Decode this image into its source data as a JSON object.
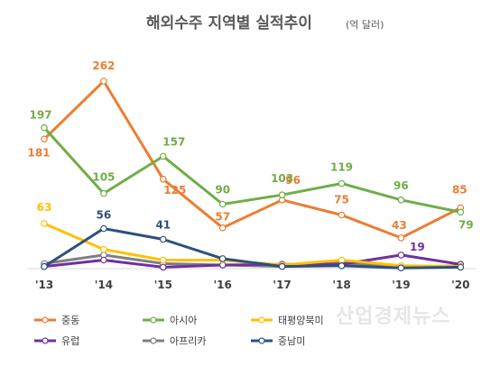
{
  "title": "해외수주 지역별 실적추이",
  "unit": "(억 달러)",
  "watermark": "산업경제뉴스",
  "chart_data": {
    "type": "line",
    "title": "해외수주 지역별 실적추이",
    "unit": "(억 달러)",
    "categories": [
      "'13",
      "'14",
      "'15",
      "'16",
      "'17",
      "'18",
      "'19",
      "'20"
    ],
    "ylim": [
      0,
      280
    ],
    "grid": false,
    "legend_position": "bottom",
    "series": [
      {
        "name": "중동",
        "color": "#ED7D31",
        "values": [
          181,
          262,
          125,
          57,
          96,
          75,
          43,
          85
        ],
        "labels": [
          "181",
          "262",
          "125",
          "57",
          "96",
          "75",
          "43",
          "85"
        ]
      },
      {
        "name": "아시아",
        "color": "#70AD47",
        "values": [
          197,
          105,
          157,
          90,
          103,
          119,
          96,
          79
        ],
        "labels": [
          "197",
          "105",
          "157",
          "90",
          "103",
          "119",
          "96",
          "79"
        ]
      },
      {
        "name": "태평양북미",
        "color": "#FFC000",
        "values": [
          63,
          27,
          12,
          12,
          5,
          12,
          4,
          3
        ],
        "labels": [
          "63",
          "",
          "",
          "",
          "",
          "",
          "",
          ""
        ]
      },
      {
        "name": "유럽",
        "color": "#7030A0",
        "values": [
          3,
          12,
          2,
          5,
          6,
          6,
          19,
          6
        ],
        "labels": [
          "",
          "",
          "",
          "",
          "",
          "",
          "19",
          ""
        ]
      },
      {
        "name": "아프리카",
        "color": "#7F7F7F",
        "values": [
          7,
          19,
          7,
          5,
          3,
          8,
          2,
          4
        ],
        "labels": [
          "",
          "",
          "",
          "",
          "",
          "",
          "",
          ""
        ]
      },
      {
        "name": "중남미",
        "color": "#2F4F7F",
        "values": [
          3,
          56,
          41,
          14,
          3,
          4,
          1,
          2
        ],
        "labels": [
          "",
          "56",
          "41",
          "",
          "",
          "",
          "",
          ""
        ]
      }
    ]
  }
}
